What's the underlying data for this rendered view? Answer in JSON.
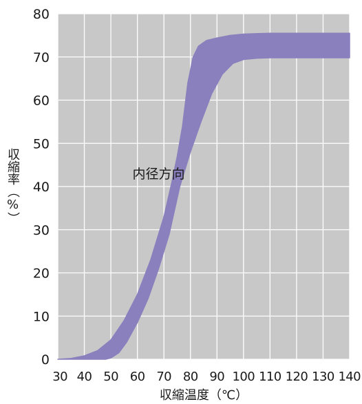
{
  "chart_data": {
    "type": "area",
    "xlabel": "収縮温度（℃）",
    "ylabel": "収縮率（%）",
    "xlim": [
      30,
      140
    ],
    "ylim": [
      0,
      80
    ],
    "x_ticks": [
      "30",
      "40",
      "50",
      "60",
      "70",
      "80",
      "90",
      "100",
      "110",
      "120",
      "130",
      "140"
    ],
    "y_ticks": [
      "0",
      "10",
      "20",
      "30",
      "40",
      "50",
      "60",
      "70",
      "80"
    ],
    "grid": true,
    "colors": {
      "plot_bg": "#c8c8c8",
      "grid": "#ffffff",
      "band": "#8a80bd"
    },
    "annotations": [
      {
        "text": "内径方向",
        "x": 68,
        "y": 43
      }
    ],
    "series": [
      {
        "band": "upper",
        "x": [
          30,
          35,
          40,
          45,
          50,
          55,
          60,
          65,
          70,
          73,
          75,
          77,
          79,
          81,
          83,
          86,
          90,
          95,
          100,
          110,
          120,
          130,
          140
        ],
        "values": [
          0,
          0.2,
          0.8,
          2,
          4.5,
          9,
          15,
          23,
          33,
          41,
          47,
          54,
          64,
          70,
          72.5,
          73.8,
          74.4,
          75,
          75.3,
          75.5,
          75.5,
          75.5,
          75.5
        ]
      },
      {
        "band": "lower",
        "x": [
          30,
          40,
          45,
          48,
          50,
          53,
          56,
          60,
          64,
          68,
          72,
          76,
          80,
          84,
          88,
          92,
          96,
          100,
          105,
          110,
          120,
          130,
          140
        ],
        "values": [
          0,
          0,
          0,
          0,
          0.3,
          1.5,
          4,
          8.5,
          14,
          21,
          29,
          40,
          48,
          55,
          61.5,
          66,
          68.5,
          69.4,
          69.7,
          69.8,
          69.8,
          69.8,
          69.8
        ]
      }
    ]
  }
}
